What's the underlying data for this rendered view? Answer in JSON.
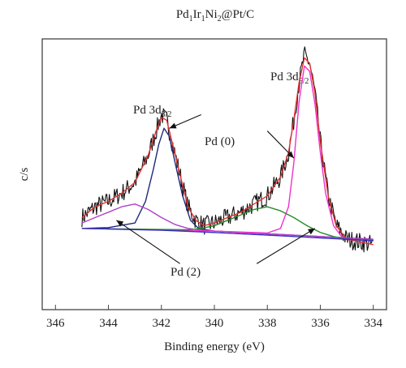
{
  "chart_data": {
    "type": "line",
    "title": {
      "base": "Pd",
      "s1": "1",
      "p2": "Ir",
      "s2": "1",
      "p3": "Ni",
      "s3": "2",
      "p4": "@Pt/C"
    },
    "xlabel": "Binding energy (eV)",
    "ylabel": "c/s",
    "xlim": [
      346.5,
      333.5
    ],
    "ylim": [
      0,
      100
    ],
    "x_reversed": true,
    "x_ticks": [
      "346",
      "344",
      "342",
      "340",
      "338",
      "336",
      "334"
    ],
    "grid": false,
    "peak_labels": [
      {
        "main": "Pd 3d",
        "sub": "3/2",
        "x": 341.9,
        "y": 80
      },
      {
        "main": "Pd 3d",
        "sub": "5/2",
        "x": 336.6,
        "y": 95
      }
    ],
    "annotations": [
      {
        "text": "Pd (0)",
        "x": 339.8,
        "y": 71
      },
      {
        "text": "Pd (2)",
        "x": 339.2,
        "y": 16
      }
    ],
    "arrows": [
      {
        "from": [
          340.5,
          72
        ],
        "to": [
          341.7,
          67
        ]
      },
      {
        "from": [
          338.0,
          66
        ],
        "to": [
          337.0,
          56
        ]
      },
      {
        "from": [
          341.3,
          17
        ],
        "to": [
          343.7,
          33
        ]
      },
      {
        "from": [
          338.4,
          17
        ],
        "to": [
          336.2,
          30
        ]
      }
    ],
    "series": [
      {
        "color": "#111111",
        "noisy": true,
        "x": [
          345,
          344.5,
          344,
          343.5,
          343,
          342.5,
          342.2,
          342,
          341.8,
          341.6,
          341.3,
          341,
          340.7,
          340.4,
          340,
          339.5,
          339,
          338.5,
          338,
          337.5,
          337.2,
          337,
          336.8,
          336.6,
          336.4,
          336.2,
          336,
          335.7,
          335.4,
          335,
          334.5,
          334
        ],
        "y": [
          34,
          38,
          40,
          43,
          47,
          57,
          66,
          72,
          70,
          62,
          50,
          38,
          33,
          31,
          32,
          34,
          36,
          39,
          42,
          49,
          58,
          70,
          84,
          94,
          91,
          80,
          62,
          42,
          31,
          26,
          25,
          24
        ]
      },
      {
        "color": "#e03030",
        "noisy": false,
        "x": [
          345,
          344.5,
          344,
          343.5,
          343,
          342.5,
          342.2,
          342,
          341.8,
          341.6,
          341.3,
          341,
          340.7,
          340.4,
          340,
          339.5,
          339,
          338.5,
          338,
          337.5,
          337.2,
          337,
          336.8,
          336.6,
          336.4,
          336.2,
          336,
          335.7,
          335.4,
          335,
          334.5,
          334
        ],
        "y": [
          34,
          38,
          40,
          43,
          47,
          57,
          66,
          71,
          70,
          62,
          50,
          38,
          33,
          31,
          32,
          34,
          36,
          39,
          42,
          49,
          58,
          70,
          84,
          93,
          91,
          80,
          62,
          42,
          31,
          26,
          25,
          24
        ]
      },
      {
        "color": "#1f2a7a",
        "noisy": false,
        "x": [
          345,
          344,
          343,
          342.6,
          342.3,
          342.1,
          341.9,
          341.7,
          341.5,
          341.2,
          340.9,
          340.6,
          340,
          338,
          336,
          334
        ],
        "y": [
          30,
          30.3,
          32,
          40,
          52,
          61,
          67,
          64,
          55,
          42,
          33,
          30,
          29,
          28,
          27,
          26
        ]
      },
      {
        "color": "#b040c8",
        "noisy": false,
        "x": [
          345,
          344.5,
          344,
          343.5,
          343,
          342.5,
          342,
          341.5,
          341,
          340.5,
          340,
          339,
          338,
          337,
          336,
          334
        ],
        "y": [
          32,
          34,
          36,
          38,
          39,
          37,
          34,
          31.5,
          30,
          29.4,
          29,
          28.5,
          28,
          27.5,
          27,
          26
        ]
      },
      {
        "color": "#ee33cc",
        "noisy": false,
        "x": [
          345,
          340,
          338,
          337.5,
          337.2,
          337,
          336.8,
          336.6,
          336.4,
          336.2,
          336,
          335.8,
          335.5,
          335.2,
          335,
          334
        ],
        "y": [
          30,
          29,
          28.3,
          30,
          38,
          54,
          77,
          90,
          88,
          76,
          58,
          43,
          31,
          27,
          26,
          25.5
        ]
      },
      {
        "color": "#2a8a2a",
        "noisy": false,
        "x": [
          345,
          341,
          340.5,
          340,
          339.5,
          339,
          338.5,
          338,
          337.5,
          337,
          336.5,
          336,
          335.5,
          335,
          334
        ],
        "y": [
          30,
          29.5,
          30,
          31,
          33,
          35,
          37,
          38,
          36.5,
          34,
          31,
          28.5,
          27,
          26,
          25.5
        ]
      },
      {
        "color": "#3b2cc4",
        "noisy": false,
        "x": [
          345,
          344,
          342,
          340,
          338,
          336,
          334
        ],
        "y": [
          30,
          29.8,
          29.3,
          28.5,
          27.5,
          26.5,
          25.5
        ]
      }
    ]
  }
}
